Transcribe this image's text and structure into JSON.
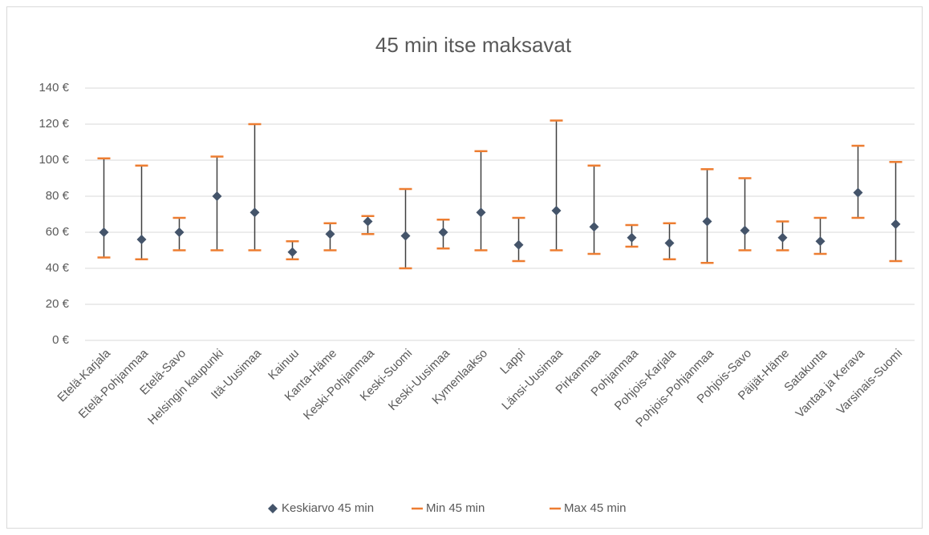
{
  "chart_data": {
    "type": "high-low",
    "title": "45 min itse maksavat",
    "categories": [
      "Etelä-Karjala",
      "Etelä-Pohjanmaa",
      "Etelä-Savo",
      "Helsingin kaupunki",
      "Itä-Uusimaa",
      "Kainuu",
      "Kanta-Häme",
      "Keski-Pohjanmaa",
      "Keski-Suomi",
      "Keski-Uusimaa",
      "Kymenlaakso",
      "Lappi",
      "Länsi-Uusimaa",
      "Pirkanmaa",
      "Pohjanmaa",
      "Pohjois-Karjala",
      "Pohjois-Pohjanmaa",
      "Pohjois-Savo",
      "Päijät-Häme",
      "Satakunta",
      "Vantaa ja Kerava",
      "Varsinais-Suomi"
    ],
    "series": [
      {
        "name": "Keskiarvo 45 min",
        "color": "#44546a",
        "values": [
          60,
          56,
          60,
          80,
          71,
          49,
          59,
          66,
          58,
          60,
          71,
          53,
          72,
          63,
          57,
          54,
          66,
          61,
          57,
          55,
          82,
          64.5
        ]
      },
      {
        "name": "Min 45 min",
        "color": "#ed7d31",
        "values": [
          46,
          45,
          50,
          50,
          50,
          45,
          50,
          59,
          40,
          51,
          50,
          44,
          50,
          48,
          52,
          45,
          43,
          50,
          50,
          48,
          68,
          44
        ]
      },
      {
        "name": "Max 45 min",
        "color": "#ed7d31",
        "values": [
          101,
          97,
          68,
          102,
          120,
          55,
          65,
          69,
          84,
          67,
          105,
          68,
          122,
          97,
          64,
          65,
          95,
          90,
          66,
          68,
          108,
          99
        ]
      }
    ],
    "ylim": [
      0,
      140
    ],
    "yticks": [
      {
        "value": 0,
        "label": "0 €"
      },
      {
        "value": 20,
        "label": "20 €"
      },
      {
        "value": 40,
        "label": "40 €"
      },
      {
        "value": 60,
        "label": "60 €"
      },
      {
        "value": 80,
        "label": "80 €"
      },
      {
        "value": 100,
        "label": "100 €"
      },
      {
        "value": 120,
        "label": "120 €"
      },
      {
        "value": 140,
        "label": "140 €"
      }
    ],
    "grid": true,
    "legend": "bottom"
  }
}
